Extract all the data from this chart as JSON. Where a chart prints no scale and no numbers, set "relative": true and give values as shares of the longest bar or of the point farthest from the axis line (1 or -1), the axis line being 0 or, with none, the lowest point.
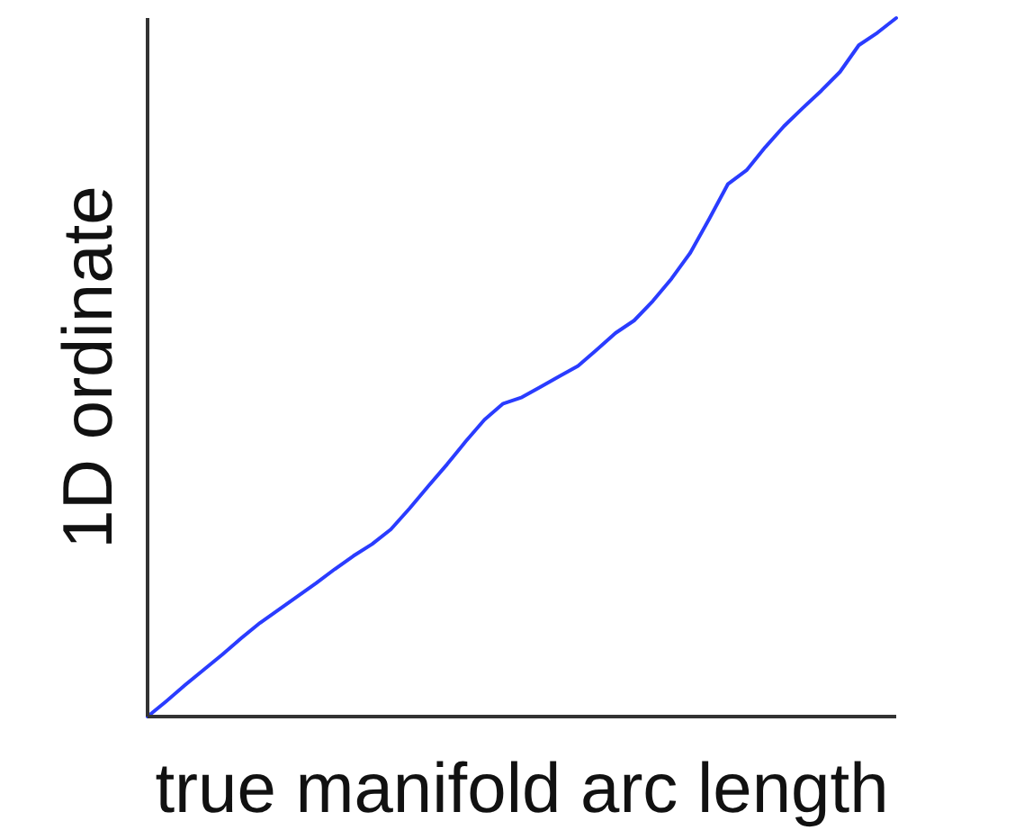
{
  "chart_data": {
    "type": "line",
    "relative": true,
    "xlabel": "true manifold arc length",
    "ylabel": "1D ordinate",
    "categories": [
      null,
      null,
      null,
      null,
      null,
      null,
      null,
      null,
      null,
      null,
      null,
      null,
      null,
      null,
      null,
      null,
      null,
      null,
      null,
      null,
      null,
      null,
      null,
      null,
      null,
      null,
      null,
      null,
      null,
      null,
      null,
      null,
      null,
      null,
      null,
      null,
      null,
      null,
      null,
      null,
      null
    ],
    "series": [
      {
        "color": "#2a3cff",
        "values": [
          0,
          0.022,
          0.045,
          0.067,
          0.089,
          0.112,
          0.134,
          0.153,
          0.172,
          0.191,
          0.211,
          0.23,
          0.247,
          0.268,
          0.298,
          0.33,
          0.361,
          0.394,
          0.425,
          0.448,
          0.457,
          0.472,
          0.487,
          0.502,
          0.525,
          0.549,
          0.567,
          0.595,
          0.627,
          0.664,
          0.712,
          0.762,
          0.782,
          0.815,
          0.845,
          0.871,
          0.896,
          0.923,
          0.961,
          0.979,
          1
        ]
      }
    ]
  }
}
